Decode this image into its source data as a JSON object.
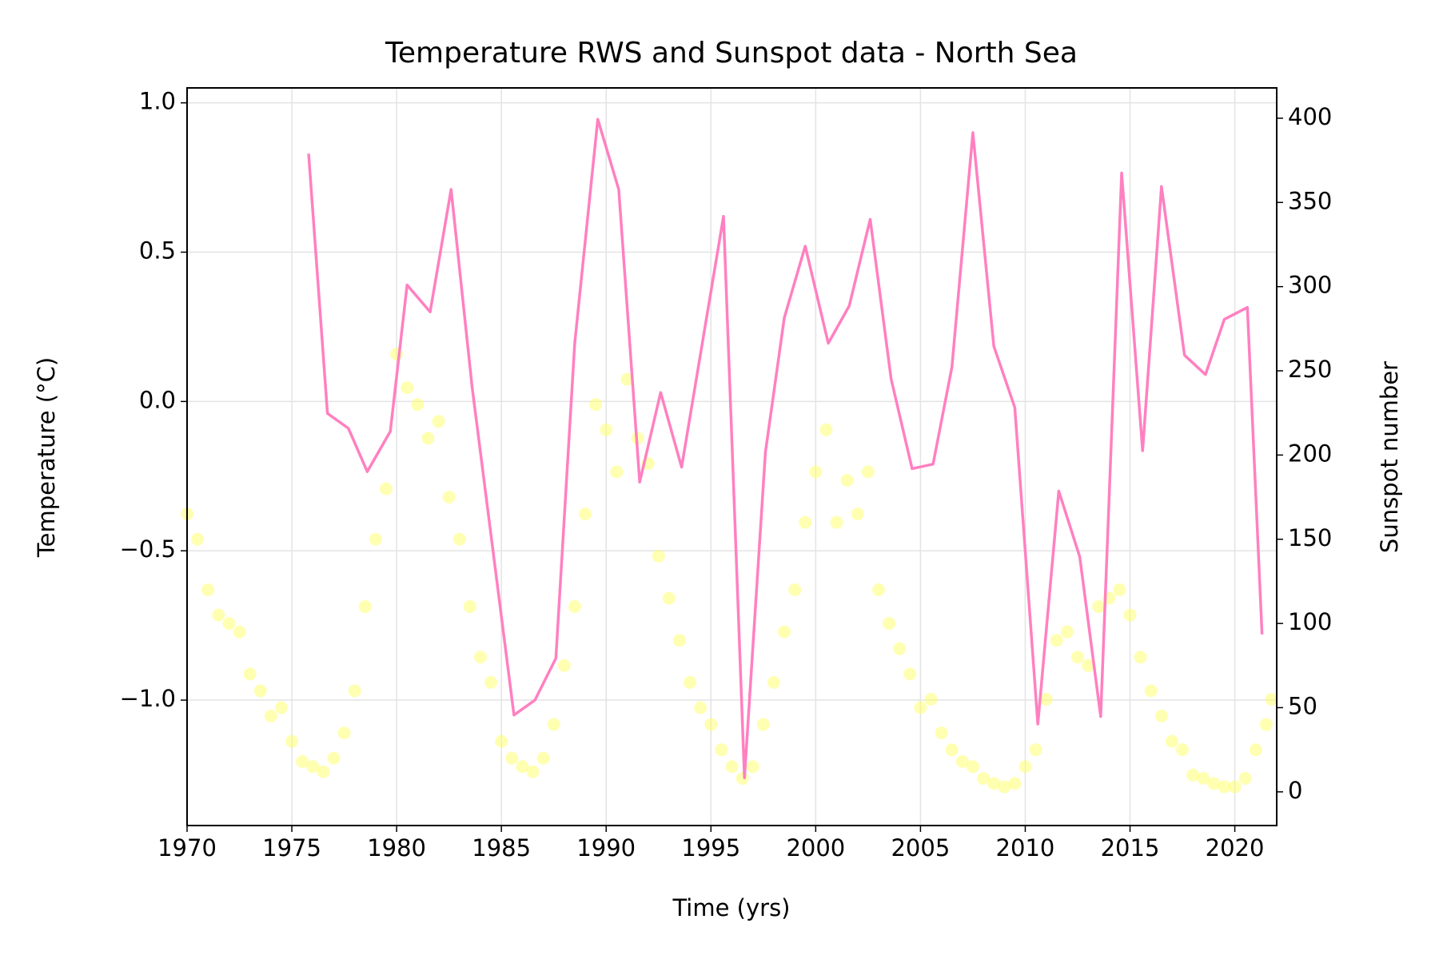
{
  "chart_data": {
    "type": "line",
    "title": "Temperature RWS and Sunspot data - North Sea",
    "x_label": "Time (yrs)",
    "y_label": "Temperature (°C)",
    "y2_label": "Sunspot number",
    "xlim": [
      1970,
      2022
    ],
    "xticks": [
      1970,
      1975,
      1980,
      1985,
      1990,
      1995,
      2000,
      2005,
      2010,
      2015,
      2020
    ],
    "ylim": [
      -1.42,
      1.05
    ],
    "yticks": [
      {
        "value": -1.0,
        "label": "−1.0"
      },
      {
        "value": -0.5,
        "label": "−0.5"
      },
      {
        "value": 0.0,
        "label": "0.0"
      },
      0.5,
      {
        "value": 1.0,
        "label": "1.0"
      }
    ],
    "y2lim": [
      -20,
      418
    ],
    "y2ticks": [
      0,
      50,
      100,
      150,
      200,
      250,
      300,
      350,
      400
    ],
    "grid": true,
    "series": [
      {
        "type": "scatter",
        "axis": "y2",
        "color": "#ffff66",
        "x": [
          1970.0,
          1970.5,
          1971.0,
          1971.5,
          1972.0,
          1972.5,
          1973.0,
          1973.5,
          1974.0,
          1974.5,
          1975.0,
          1975.5,
          1976.0,
          1976.5,
          1977.0,
          1977.5,
          1978.0,
          1978.5,
          1979.0,
          1979.5,
          1980.0,
          1980.5,
          1981.0,
          1981.5,
          1982.0,
          1982.5,
          1983.0,
          1983.5,
          1984.0,
          1984.5,
          1985.0,
          1985.5,
          1986.0,
          1986.5,
          1987.0,
          1987.5,
          1988.0,
          1988.5,
          1989.0,
          1989.5,
          1990.0,
          1990.5,
          1991.0,
          1991.5,
          1992.0,
          1992.5,
          1993.0,
          1993.5,
          1994.0,
          1994.5,
          1995.0,
          1995.5,
          1996.0,
          1996.5,
          1997.0,
          1997.5,
          1998.0,
          1998.5,
          1999.0,
          1999.5,
          2000.0,
          2000.5,
          2001.0,
          2001.5,
          2002.0,
          2002.5,
          2003.0,
          2003.5,
          2004.0,
          2004.5,
          2005.0,
          2005.5,
          2006.0,
          2006.5,
          2007.0,
          2007.5,
          2008.0,
          2008.5,
          2009.0,
          2009.5,
          2010.0,
          2010.5,
          2011.0,
          2011.5,
          2012.0,
          2012.5,
          2013.0,
          2013.5,
          2014.0,
          2014.5,
          2015.0,
          2015.5,
          2016.0,
          2016.5,
          2017.0,
          2017.5,
          2018.0,
          2018.5,
          2019.0,
          2019.5,
          2020.0,
          2020.5,
          2021.0,
          2021.5,
          2021.75
        ],
        "values": [
          165,
          150,
          120,
          105,
          100,
          95,
          70,
          60,
          45,
          50,
          30,
          18,
          15,
          12,
          20,
          35,
          60,
          110,
          150,
          180,
          260,
          240,
          230,
          210,
          220,
          175,
          150,
          110,
          80,
          65,
          30,
          20,
          15,
          12,
          20,
          40,
          75,
          110,
          165,
          230,
          215,
          190,
          245,
          210,
          195,
          140,
          115,
          90,
          65,
          50,
          40,
          25,
          15,
          8,
          15,
          40,
          65,
          95,
          120,
          160,
          190,
          215,
          160,
          185,
          165,
          190,
          120,
          100,
          85,
          70,
          50,
          55,
          35,
          25,
          18,
          15,
          8,
          5,
          3,
          5,
          15,
          25,
          55,
          90,
          95,
          80,
          75,
          110,
          115,
          120,
          105,
          80,
          60,
          45,
          30,
          25,
          10,
          8,
          5,
          3,
          3,
          8,
          25,
          40,
          55
        ]
      },
      {
        "type": "line",
        "axis": "y",
        "color": "#ff80c0",
        "x": [
          1975.8,
          1976.7,
          1977.7,
          1978.6,
          1979.7,
          1980.5,
          1981.6,
          1982.6,
          1983.6,
          1985.6,
          1986.6,
          1987.6,
          1988.5,
          1989.6,
          1990.6,
          1991.6,
          1992.6,
          1993.6,
          1995.6,
          1996.6,
          1997.6,
          1998.5,
          1999.5,
          2000.6,
          2001.6,
          2002.6,
          2003.6,
          2004.6,
          2005.6,
          2006.5,
          2007.5,
          2008.5,
          2009.5,
          2010.6,
          2011.6,
          2012.6,
          2013.6,
          2014.6,
          2015.6,
          2016.5,
          2017.6,
          2018.6,
          2019.5,
          2020.6,
          2021.3
        ],
        "values": [
          0.83,
          -0.04,
          -0.09,
          -0.235,
          -0.1,
          0.39,
          0.3,
          0.71,
          0.05,
          -1.05,
          -1.0,
          -0.86,
          0.195,
          0.945,
          0.71,
          -0.27,
          0.03,
          -0.22,
          0.62,
          -1.26,
          -0.17,
          0.28,
          0.52,
          0.195,
          0.32,
          0.61,
          0.075,
          -0.225,
          -0.21,
          0.115,
          0.9,
          0.185,
          -0.02,
          -1.08,
          -0.3,
          -0.52,
          -1.055,
          0.765,
          -0.165,
          0.72,
          0.155,
          0.09,
          0.275,
          0.315,
          -0.78
        ]
      }
    ]
  }
}
